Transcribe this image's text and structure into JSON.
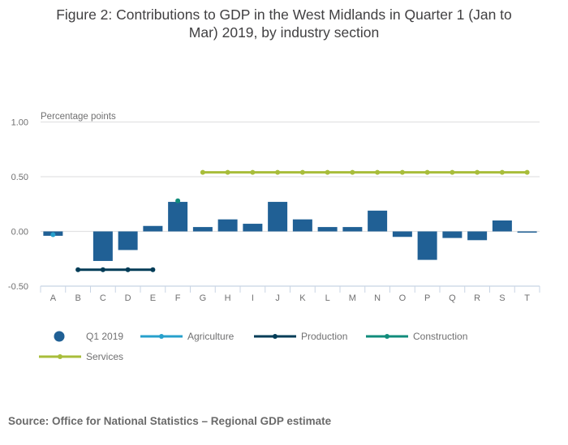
{
  "title_lines": [
    "Figure 2: Contributions to GDP in the West Midlands in Quarter 1 (Jan to",
    "Mar) 2019, by industry section"
  ],
  "source": "Source: Office for National Statistics – Regional GDP estimate",
  "chart_data": {
    "type": "bar",
    "title": "Figure 2: Contributions to GDP in the West Midlands in Quarter 1 (Jan to Mar) 2019, by industry section",
    "xlabel": "",
    "ylabel": "Percentage points",
    "ylim": [
      -0.5,
      1.0
    ],
    "yticks": [
      1.0,
      0.5,
      0.0,
      -0.5
    ],
    "ytick_labels": [
      "1.00",
      "0.50",
      "0.00",
      "-0.50"
    ],
    "grid": true,
    "legend_position": "bottom",
    "categories": [
      "A",
      "B",
      "C",
      "D",
      "E",
      "F",
      "G",
      "H",
      "I",
      "J",
      "K",
      "L",
      "M",
      "N",
      "O",
      "P",
      "Q",
      "R",
      "S",
      "T"
    ],
    "series": [
      {
        "name": "Q1 2019",
        "kind": "bar",
        "color": "#206095",
        "values": [
          -0.04,
          0.0,
          -0.27,
          -0.17,
          0.05,
          0.27,
          0.04,
          0.11,
          0.07,
          0.27,
          0.11,
          0.04,
          0.04,
          0.19,
          -0.05,
          -0.26,
          -0.06,
          -0.08,
          0.1,
          -0.01
        ]
      },
      {
        "name": "Agriculture",
        "kind": "line",
        "color": "#27a0cc",
        "values": [
          -0.03,
          null,
          null,
          null,
          null,
          null,
          null,
          null,
          null,
          null,
          null,
          null,
          null,
          null,
          null,
          null,
          null,
          null,
          null,
          null
        ]
      },
      {
        "name": "Production",
        "kind": "line",
        "color": "#003c57",
        "values": [
          null,
          -0.35,
          -0.35,
          -0.35,
          -0.35,
          null,
          null,
          null,
          null,
          null,
          null,
          null,
          null,
          null,
          null,
          null,
          null,
          null,
          null,
          null
        ]
      },
      {
        "name": "Construction",
        "kind": "line",
        "color": "#118c7b",
        "values": [
          null,
          null,
          null,
          null,
          null,
          0.28,
          null,
          null,
          null,
          null,
          null,
          null,
          null,
          null,
          null,
          null,
          null,
          null,
          null,
          null
        ]
      },
      {
        "name": "Services",
        "kind": "line",
        "color": "#a8bd3a",
        "values": [
          null,
          null,
          null,
          null,
          null,
          null,
          0.54,
          0.54,
          0.54,
          0.54,
          0.54,
          0.54,
          0.54,
          0.54,
          0.54,
          0.54,
          0.54,
          0.54,
          0.54,
          0.54
        ]
      }
    ]
  }
}
